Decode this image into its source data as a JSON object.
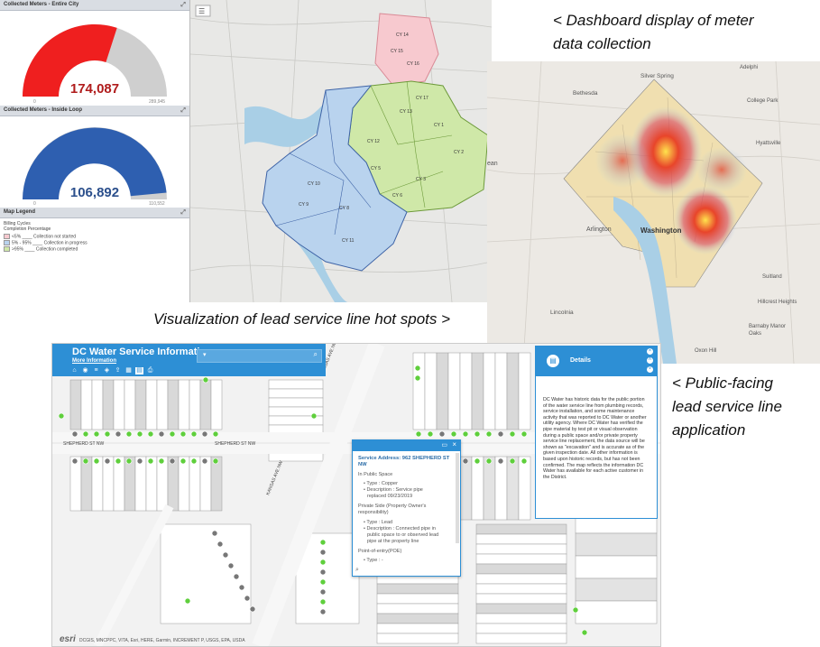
{
  "captions": {
    "dashboard": "< Dashboard display of meter data collection",
    "dashboard_line1": "< Dashboard display of meter",
    "dashboard_line2": "data collection",
    "hotspots": "Visualization of lead service line hot spots >",
    "public_line1": "< Public-facing",
    "public_line2": "lead service line",
    "public_line3": "application"
  },
  "dashboard": {
    "gauge1": {
      "title": "Collected Meters - Entire City",
      "value": "174,087",
      "min": "0",
      "max": "289,945",
      "color": "#ef1f1f",
      "fraction": 0.6
    },
    "gauge2": {
      "title": "Collected Meters - Inside Loop",
      "value": "106,892",
      "min": "0",
      "max": "110,552",
      "color": "#2e5fb0",
      "fraction": 0.97
    },
    "legend": {
      "title": "Map Legend",
      "subtitle1": "Billing Cycles",
      "subtitle2": "Completion Percentage",
      "items": [
        {
          "label": "<5% ____ Collection not started",
          "color": "#f7c9cf"
        },
        {
          "label": "5% - 95% ____ Collection in progress",
          "color": "#b9d3ee"
        },
        {
          "label": ">95% ____ Collection completed",
          "color": "#cfe8a8"
        }
      ]
    }
  },
  "cycle_map": {
    "labels": [
      "CY 14",
      "CY 15",
      "CY 16",
      "CY 17",
      "CY 13",
      "CY 12",
      "CY 2",
      "CY 3",
      "CY 5",
      "CY 6",
      "CY 8",
      "CY 9",
      "CY 10",
      "CY 11",
      "CY 1"
    ]
  },
  "heat_map": {
    "places": [
      "Silver Spring",
      "Adelphi",
      "Bethesda",
      "College Park",
      "Hyattsville",
      "Arlington",
      "Washington",
      "Hillcrest Heights",
      "Suitland",
      "Barnaby Manor",
      "Oaks",
      "Oxon Hill",
      "Lincolnia",
      "ean"
    ]
  },
  "lead_app": {
    "title": "DC Water Service Information",
    "more_info": "More Information",
    "streets": [
      "SHEPHERD ST NW",
      "SHEPHERD ST NW",
      "KANSAS AVE NW",
      "KANSAS AVE NW"
    ],
    "attribution": "DCGIS, MNCPPC, VITA, Esri, HERE, Garmin, INCREMENT P, USGS, EPA, USDA",
    "esri_logo": "esri",
    "popup": {
      "address": "Service Address: 962 SHEPHERD ST NW",
      "public_space": "In Public Space",
      "type1": "• Type : Copper",
      "desc1a": "• Description : Service pipe",
      "desc1b": "replaced 09/23/2019",
      "private_side_a": "Private Side (Property Owner's",
      "private_side_b": "responsibility)",
      "type2": "• Type : Lead",
      "desc2a": "• Description : Connected pipe in",
      "desc2b": "public space to or observed lead",
      "desc2c": "pipe at the property line",
      "poe": "Point-of-entry(POE)",
      "type3": "• Type : -"
    },
    "details": {
      "title": "Details",
      "body": "DC Water has historic data for the public portion of the water service line from plumbing records, service installation, and some maintenance activity that was reported to DC Water or another utility agency. Where DC Water has verified the pipe material by test pit or visual observation during a public space and/or private property service line replacement, the data source will be shown as \"excavation\" and is accurate as of the given inspection date. All other information is based upon historic records, but has not been confirmed. The map reflects the information DC Water has available for each active customer in the District."
    }
  }
}
